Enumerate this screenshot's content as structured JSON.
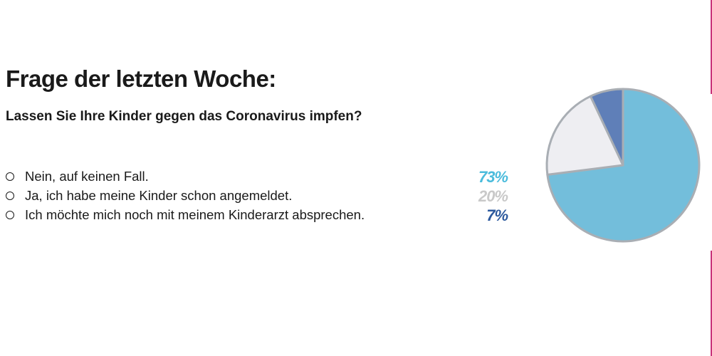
{
  "header": {
    "title": "Frage der letzten Woche:",
    "question": "Lassen Sie Ihre Kinder gegen das Coronavirus impfen?"
  },
  "options": [
    {
      "label": "Nein, auf keinen Fall.",
      "percent_label": "73%",
      "color": "#4bbcdc"
    },
    {
      "label": "Ja, ich habe meine Kinder schon angemeldet.",
      "percent_label": "20%",
      "color": "#c9c9c9"
    },
    {
      "label": "Ich möchte mich noch mit meinem Kinderarzt absprechen.",
      "percent_label": "7%",
      "color": "#2d5a9e"
    }
  ],
  "chart_data": {
    "type": "pie",
    "categories": [
      "Nein, auf keinen Fall.",
      "Ja, ich habe meine Kinder schon angemeldet.",
      "Ich möchte mich noch mit meinem Kinderarzt absprechen."
    ],
    "values": [
      73,
      20,
      7
    ],
    "slice_colors": [
      "#73bedb",
      "#eeeef2",
      "#5f7fb8"
    ],
    "outline_color": "#a9aeb4"
  }
}
